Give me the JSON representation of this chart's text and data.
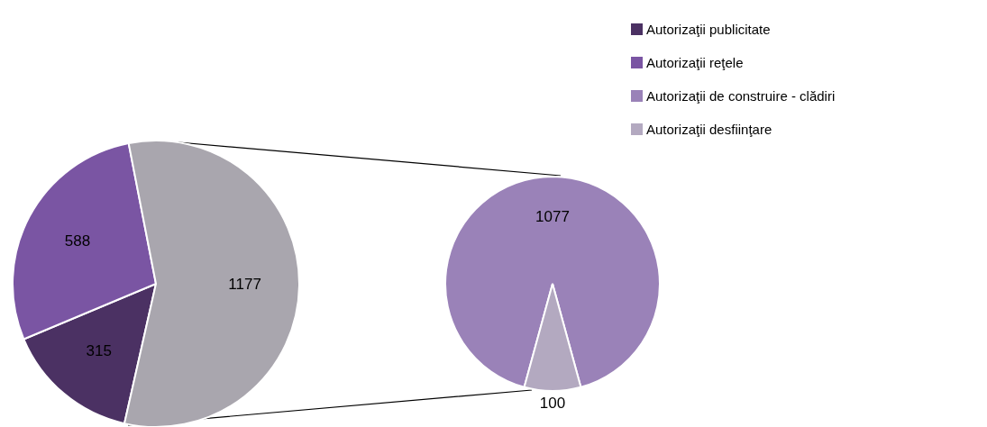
{
  "chart_data": [
    {
      "type": "pie",
      "categories": [
        "Autorizaţii publicitate",
        "Autorizaţii reţele",
        null
      ],
      "values": [
        315,
        588,
        1177
      ],
      "colors": [
        "#4b3163",
        "#7a55a3",
        "#a9a6ae"
      ],
      "data_labels": true,
      "legend": "top right"
    },
    {
      "type": "pie",
      "categories": [
        "Autorizaţii de construire - clădiri",
        "Autorizaţii desfiinţare"
      ],
      "values": [
        1077,
        100
      ],
      "colors": [
        "#9a82b8",
        "#b3a9c0"
      ],
      "data_labels": true,
      "legend": "top right"
    }
  ]
}
